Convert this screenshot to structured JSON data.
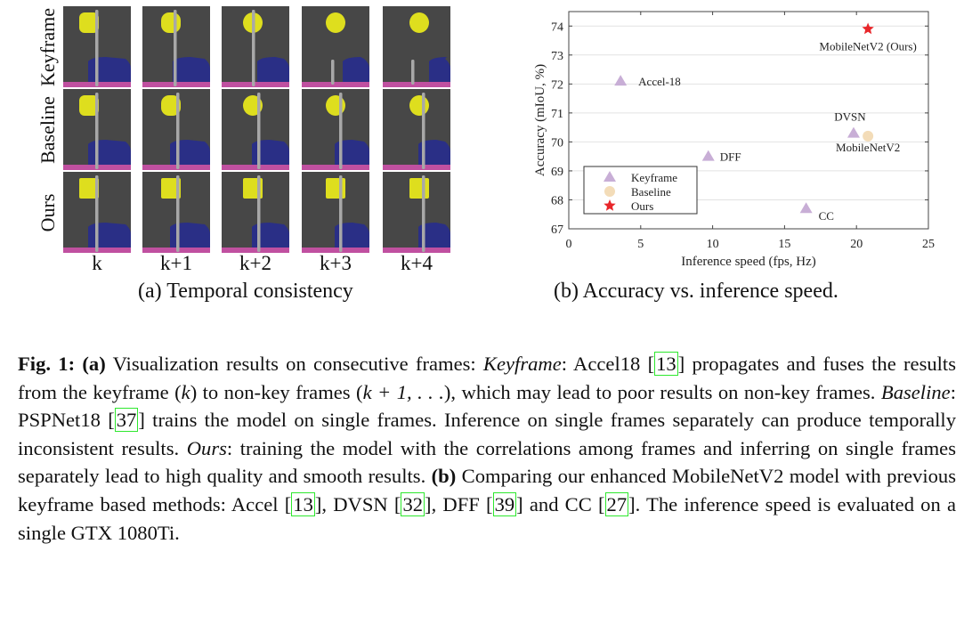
{
  "panel_a": {
    "row_labels": [
      "Keyframe",
      "Baseline",
      "Ours"
    ],
    "column_labels": [
      "k",
      "k+1",
      "k+2",
      "k+3",
      "k+4"
    ],
    "colors": {
      "background": "#474747",
      "sign": "#dede1e",
      "pole": "#a8a8a8",
      "car": "#2a2f86",
      "ground": "#c050a0"
    },
    "subcaption": "(a) Temporal consistency"
  },
  "panel_b": {
    "subcaption": "(b) Accuracy vs. inference speed."
  },
  "chart_data": {
    "type": "scatter",
    "xlabel": "Inference speed (fps, Hz)",
    "ylabel": "Accuracy (mIoU, %)",
    "xlim": [
      0,
      25
    ],
    "ylim": [
      67,
      74.5
    ],
    "xticks": [
      "0",
      "5",
      "10",
      "15",
      "20",
      "25"
    ],
    "yticks": [
      "67",
      "68",
      "69",
      "70",
      "71",
      "72",
      "73",
      "74"
    ],
    "grid": "horizontal",
    "legend_position": "bottom-left",
    "series": [
      {
        "name": "Keyframe",
        "marker": "triangle",
        "color": "#c8aed6",
        "points": [
          {
            "x": 3.6,
            "y": 72.1,
            "label": "Accel-18"
          },
          {
            "x": 9.7,
            "y": 69.5,
            "label": "DFF"
          },
          {
            "x": 16.5,
            "y": 67.7,
            "label": "CC"
          },
          {
            "x": 19.8,
            "y": 70.3,
            "label": "DVSN"
          }
        ]
      },
      {
        "name": "Baseline",
        "marker": "circle",
        "color": "#f3dcb8",
        "points": [
          {
            "x": 20.8,
            "y": 70.2,
            "label": "MobileNetV2"
          }
        ]
      },
      {
        "name": "Ours",
        "marker": "star",
        "color": "#e8262a",
        "points": [
          {
            "x": 20.8,
            "y": 73.9,
            "label": "MobileNetV2 (Ours)"
          }
        ]
      }
    ]
  },
  "caption": {
    "fig": "Fig. 1:",
    "a": "(a)",
    "t1": " Visualization results on consecutive frames: ",
    "kf": "Keyframe",
    "t2": ": Accel18 ",
    "r13": "13",
    "t3": " propagates and fuses the results from the keyframe (",
    "k": "k",
    "t4": ") to non-key frames (",
    "k1": "k + 1, . . .",
    "t5": "), which may lead to poor results on non-key frames. ",
    "bl": "Baseline",
    "t6": ": PSPNet18 ",
    "r37": "37",
    "t7": " trains the model on single frames. Inference on single frames separately can produce temporally inconsistent results. ",
    "ours": "Ours",
    "t8": ": training the model with the correlations among frames and inferring on single frames separately lead to high quality and smooth results. ",
    "b": "(b)",
    "t9": " Comparing our enhanced MobileNetV2 model with previous keyframe based methods: Accel ",
    "r13b": "13",
    "t10": ", DVSN ",
    "r32": "32",
    "t11": ", DFF ",
    "r39": "39",
    "t12": " and CC ",
    "r27": "27",
    "t13": ". The inference speed is evaluated on a single GTX 1080Ti."
  }
}
